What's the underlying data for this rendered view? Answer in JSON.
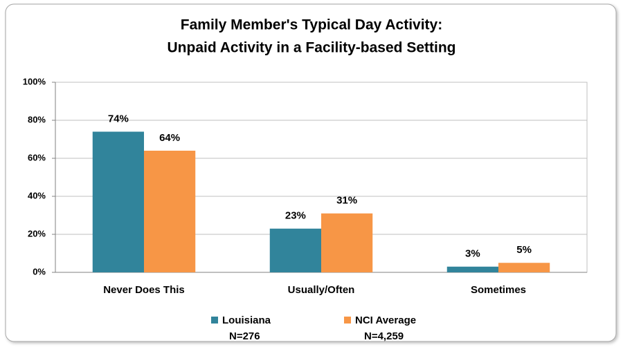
{
  "chart_data": {
    "type": "bar",
    "title": "Family Member's Typical Day Activity:",
    "subtitle": "Unpaid Activity in a Facility-based Setting",
    "categories": [
      "Never Does This",
      "Usually/Often",
      "Sometimes"
    ],
    "series": [
      {
        "name": "Louisiana",
        "sample_size_label": "N=276",
        "color": "#31849b",
        "values": [
          74,
          23,
          3
        ],
        "value_labels": [
          "74%",
          "23%",
          "3%"
        ]
      },
      {
        "name": "NCI Average",
        "sample_size_label": "N=4,259",
        "color": "#f79646",
        "values": [
          64,
          31,
          5
        ],
        "value_labels": [
          "64%",
          "31%",
          "5%"
        ]
      }
    ],
    "ylim": [
      0,
      100
    ],
    "yticks": [
      {
        "value": 0,
        "label": "0%"
      },
      {
        "value": 20,
        "label": "20%"
      },
      {
        "value": 40,
        "label": "40%"
      },
      {
        "value": 60,
        "label": "60%"
      },
      {
        "value": 80,
        "label": "80%"
      },
      {
        "value": 100,
        "label": "100%"
      }
    ],
    "grid": true,
    "legend": "bottom"
  }
}
